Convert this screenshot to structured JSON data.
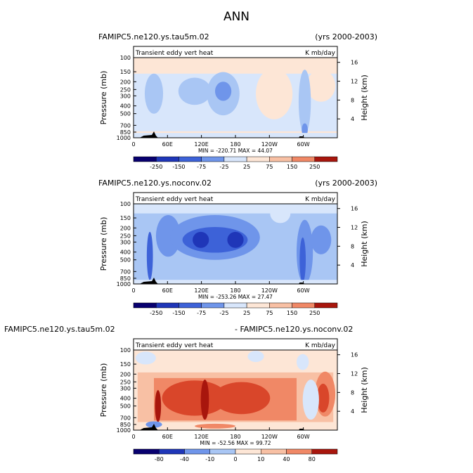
{
  "title": "ANN",
  "panels": [
    {
      "case_left": "FAMIPC5.ne120.ys.tau5m.02",
      "case_right": "(yrs 2000-2003)",
      "variable": "Transient eddy vert heat",
      "units": "K mb/day",
      "min_max": "MIN = -220.71  MAX = 44.07",
      "colorbar_labels": [
        "-250",
        "-150",
        "-75",
        "-25",
        "25",
        "75",
        "150",
        "250"
      ]
    },
    {
      "case_left": "FAMIPC5.ne120.ys.noconv.02",
      "case_right": "(yrs 2000-2003)",
      "variable": "Transient eddy vert heat",
      "units": "K mb/day",
      "min_max": "MIN = -253.26  MAX = 27.47",
      "colorbar_labels": [
        "-250",
        "-150",
        "-75",
        "-25",
        "25",
        "75",
        "150",
        "250"
      ]
    },
    {
      "case_left": "FAMIPC5.ne120.ys.tau5m.02",
      "case_right": "- FAMIPC5.ne120.ys.noconv.02",
      "variable": "Transient eddy vert heat",
      "units": "K mb/day",
      "min_max": "MIN = -52.56  MAX = 99.72",
      "colorbar_labels": [
        "-80",
        "-40",
        "-10",
        "0",
        "10",
        "40",
        "80"
      ]
    }
  ],
  "axes": {
    "y_label": "Pressure  (mb)",
    "y_ticks": [
      "100",
      "150",
      "200",
      "250",
      "300",
      "400",
      "500",
      "700",
      "850",
      "1000"
    ],
    "x_ticks": [
      "0",
      "60E",
      "120E",
      "180",
      "120W",
      "60W"
    ],
    "right_label": "Height  (km)",
    "right_ticks": [
      "16",
      "12",
      "8",
      "4"
    ]
  },
  "chart_data": [
    {
      "type": "heatmap",
      "title": "Transient eddy vert heat",
      "x_ticks": [
        "0",
        "60E",
        "120E",
        "180",
        "120W",
        "60W"
      ],
      "y_ticks_mb": [
        100,
        150,
        200,
        250,
        300,
        400,
        500,
        700,
        850,
        1000
      ],
      "height_ticks_km": [
        16,
        12,
        8,
        4
      ],
      "contour_levels": [
        -250,
        -150,
        -75,
        -25,
        25,
        75,
        150,
        250
      ],
      "min": -220.71,
      "max": 44.07,
      "colors": [
        "#08006f",
        "#1f36b8",
        "#3d62d8",
        "#6f95ea",
        "#a9c6f4",
        "#d8e6fb",
        "#fde6d6",
        "#f8c0a4",
        "#f08866",
        "#d9462a",
        "#a8160d",
        "#6e0505"
      ]
    },
    {
      "type": "heatmap",
      "title": "Transient eddy vert heat",
      "x_ticks": [
        "0",
        "60E",
        "120E",
        "180",
        "120W",
        "60W"
      ],
      "y_ticks_mb": [
        100,
        150,
        200,
        250,
        300,
        400,
        500,
        700,
        850,
        1000
      ],
      "height_ticks_km": [
        16,
        12,
        8,
        4
      ],
      "contour_levels": [
        -250,
        -150,
        -75,
        -25,
        25,
        75,
        150,
        250
      ],
      "min": -253.26,
      "max": 27.47,
      "colors": [
        "#08006f",
        "#1f36b8",
        "#3d62d8",
        "#6f95ea",
        "#a9c6f4",
        "#d8e6fb",
        "#fde6d6",
        "#f8c0a4",
        "#f08866",
        "#d9462a",
        "#a8160d",
        "#6e0505"
      ]
    },
    {
      "type": "heatmap",
      "title": "Transient eddy vert heat",
      "x_ticks": [
        "0",
        "60E",
        "120E",
        "180",
        "120W",
        "60W"
      ],
      "y_ticks_mb": [
        100,
        150,
        200,
        250,
        300,
        400,
        500,
        700,
        850,
        1000
      ],
      "height_ticks_km": [
        16,
        12,
        8,
        4
      ],
      "contour_levels": [
        -80,
        -40,
        -10,
        0,
        10,
        40,
        80
      ],
      "min": -52.56,
      "max": 99.72,
      "colors": [
        "#08006f",
        "#1f36b8",
        "#3d62d8",
        "#6f95ea",
        "#a9c6f4",
        "#d8e6fb",
        "#fde6d6",
        "#f8c0a4",
        "#f08866",
        "#d9462a",
        "#a8160d",
        "#6e0505"
      ]
    }
  ]
}
